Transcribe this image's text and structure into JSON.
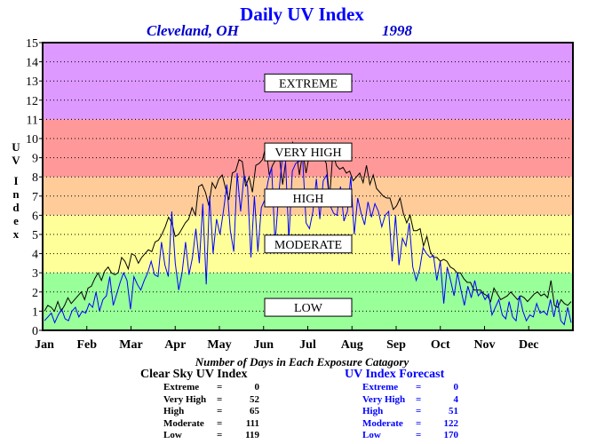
{
  "chart_data": {
    "type": "line",
    "title": "Daily UV Index",
    "location": "Cleveland, OH",
    "year": "1998",
    "ylabel": "UV Index",
    "xlabel": "",
    "ylim": [
      0,
      15
    ],
    "yticks": [
      0,
      1,
      2,
      3,
      4,
      5,
      6,
      7,
      8,
      9,
      10,
      11,
      12,
      13,
      14,
      15
    ],
    "months": [
      "Jan",
      "Feb",
      "Mar",
      "Apr",
      "May",
      "Jun",
      "Jul",
      "Aug",
      "Sep",
      "Oct",
      "Nov",
      "Dec"
    ],
    "grid": true,
    "bands": [
      {
        "label": "LOW",
        "from": 0,
        "to": 3,
        "color": "#99ff99",
        "label_y": 1.2
      },
      {
        "label": "MODERATE",
        "from": 3,
        "to": 6,
        "color": "#ffff99",
        "label_y": 4.5
      },
      {
        "label": "HIGH",
        "from": 6,
        "to": 8,
        "color": "#ffcc99",
        "label_y": 6.9
      },
      {
        "label": "VERY HIGH",
        "from": 8,
        "to": 11,
        "color": "#ff9999",
        "label_y": 9.3
      },
      {
        "label": "EXTREME",
        "from": 11,
        "to": 15,
        "color": "#dd99ff",
        "label_y": 12.9
      }
    ],
    "series": [
      {
        "name": "Clear Sky UV Index",
        "color": "#000000",
        "values": [
          1.0,
          1.3,
          1.2,
          1.0,
          1.5,
          1.0,
          1.3,
          1.7,
          1.4,
          1.6,
          1.8,
          2.0,
          1.6,
          2.2,
          2.3,
          2.7,
          3.0,
          2.6,
          3.1,
          3.3,
          3.0,
          2.9,
          3.0,
          3.8,
          3.6,
          3.2,
          4.0,
          3.9,
          3.5,
          3.8,
          4.0,
          4.2,
          4.1,
          4.6,
          4.7,
          5.0,
          5.4,
          5.9,
          5.6,
          4.9,
          5.0,
          5.3,
          5.6,
          5.8,
          6.4,
          6.0,
          7.5,
          7.6,
          7.2,
          6.5,
          7.7,
          7.4,
          7.9,
          8.1,
          7.4,
          6.8,
          8.2,
          8.3,
          8.9,
          8.8,
          7.5,
          8.0,
          7.2,
          8.6,
          8.7,
          8.9,
          9.6,
          8.1,
          8.6,
          8.9,
          9.1,
          7.6,
          8.9,
          9.0,
          9.8,
          9.4,
          8.1,
          9.3,
          8.2,
          9.2,
          9.0,
          9.4,
          9.3,
          9.1,
          8.7,
          6.9,
          9.3,
          8.6,
          8.4,
          8.5,
          8.2,
          8.3,
          7.8,
          8.0,
          8.2,
          7.7,
          8.6,
          7.6,
          8.1,
          7.4,
          7.2,
          7.0,
          6.9,
          6.9,
          6.3,
          6.5,
          6.9,
          6.1,
          5.6,
          6.0,
          5.2,
          5.2,
          5.3,
          4.4,
          4.9,
          4.1,
          3.8,
          3.8,
          3.6,
          3.7,
          3.6,
          3.3,
          3.2,
          3.0,
          3.0,
          2.7,
          2.5,
          2.5,
          2.1,
          2.1,
          2.1,
          1.9,
          1.8,
          1.5,
          2.2,
          1.9,
          1.6,
          1.7,
          1.8,
          2.0,
          1.8,
          1.6,
          1.8,
          1.7,
          1.5,
          1.7,
          1.9,
          2.0,
          1.8,
          1.9,
          1.7,
          2.6,
          1.3,
          1.2,
          1.6,
          1.4,
          1.3,
          1.5
        ]
      },
      {
        "name": "UV Index Forecast",
        "color": "#0000ff",
        "values": [
          0.5,
          0.7,
          0.9,
          0.4,
          0.8,
          1.1,
          0.6,
          0.5,
          1.0,
          1.2,
          0.7,
          1.0,
          0.9,
          1.4,
          1.2,
          2.0,
          1.0,
          1.6,
          1.8,
          2.8,
          1.3,
          1.9,
          2.5,
          3.0,
          2.6,
          1.1,
          2.8,
          2.4,
          2.1,
          2.6,
          3.0,
          3.6,
          2.9,
          2.8,
          4.6,
          3.4,
          2.8,
          6.2,
          3.5,
          2.1,
          3.0,
          4.6,
          2.9,
          3.8,
          5.3,
          3.5,
          6.6,
          2.4,
          7.0,
          4.0,
          5.8,
          5.0,
          6.2,
          7.6,
          5.2,
          4.1,
          8.2,
          6.2,
          8.1,
          7.5,
          3.8,
          7.0,
          4.1,
          6.4,
          6.8,
          7.8,
          8.5,
          4.5,
          7.0,
          8.8,
          9.0,
          4.7,
          8.3,
          8.7,
          8.8,
          9.0,
          5.6,
          5.3,
          6.2,
          7.9,
          5.8,
          7.8,
          8.1,
          6.5,
          6.1,
          6.0,
          7.5,
          5.7,
          6.2,
          8.0,
          5.0,
          6.9,
          6.1,
          5.5,
          6.7,
          5.9,
          6.6,
          6.2,
          5.4,
          6.0,
          6.2,
          3.6,
          6.0,
          3.4,
          4.8,
          4.4,
          5.6,
          3.3,
          2.6,
          3.2,
          4.3,
          4.0,
          3.8,
          3.9,
          2.6,
          3.6,
          1.4,
          3.3,
          2.6,
          1.8,
          3.0,
          2.1,
          1.3,
          2.3,
          1.7,
          2.6,
          1.8,
          2.0,
          1.6,
          1.9,
          0.8,
          1.2,
          1.6,
          0.8,
          0.6,
          1.5,
          0.7,
          0.5,
          1.8,
          1.0,
          0.5,
          0.8,
          0.7,
          1.4,
          0.9,
          1.0,
          0.8,
          1.6,
          0.7,
          1.6,
          0.5,
          0.3,
          1.2,
          0.4
        ]
      }
    ]
  },
  "stats": {
    "title": "Number of Days in Each Exposure Catagory",
    "left": {
      "heading": "Clear Sky UV Index",
      "rows": [
        {
          "label": "Extreme",
          "value": "0"
        },
        {
          "label": "Very High",
          "value": "52"
        },
        {
          "label": "High",
          "value": "65"
        },
        {
          "label": "Moderate",
          "value": "111"
        },
        {
          "label": "Low",
          "value": "119"
        }
      ]
    },
    "right": {
      "heading": "UV Index Forecast",
      "rows": [
        {
          "label": "Extreme",
          "value": "0"
        },
        {
          "label": "Very High",
          "value": "4"
        },
        {
          "label": "High",
          "value": "51"
        },
        {
          "label": "Moderate",
          "value": "122"
        },
        {
          "label": "Low",
          "value": "170"
        }
      ]
    }
  }
}
